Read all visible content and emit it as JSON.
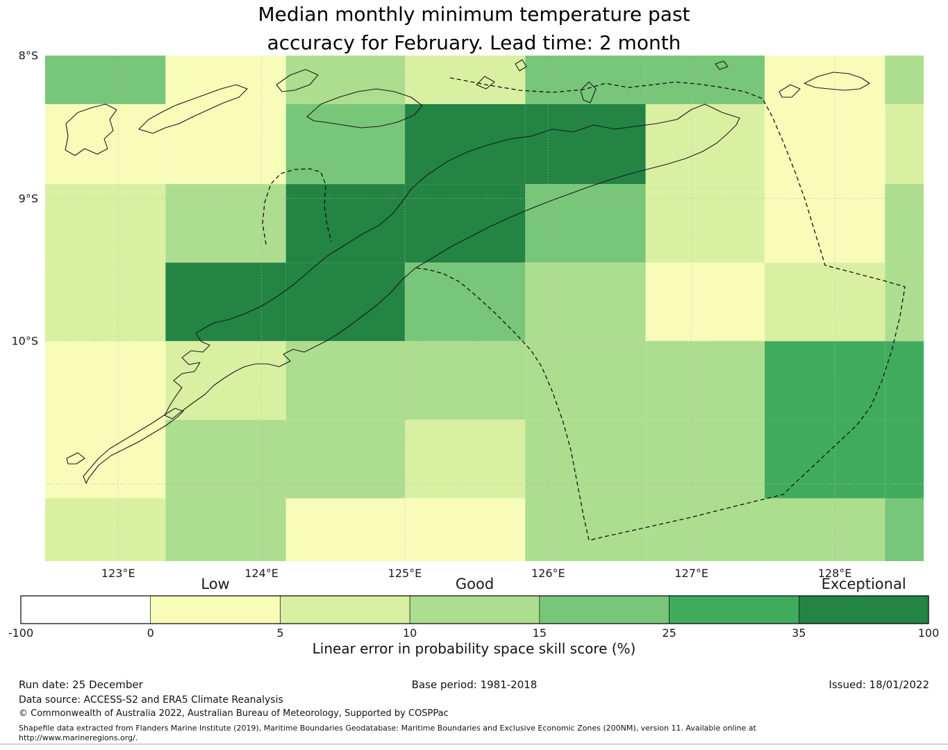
{
  "title": {
    "line1": "Median monthly minimum temperature past",
    "line2": "accuracy for February. Lead time: 2 month"
  },
  "chart_data": {
    "type": "heatmap",
    "title": "Median monthly minimum temperature past accuracy for February. Lead time: 2 month",
    "xlim": [
      122.49,
      128.62
    ],
    "ylim": [
      8.0,
      11.54
    ],
    "x_ticks": [
      {
        "value": 123,
        "label": "123°E"
      },
      {
        "value": 124,
        "label": "124°E"
      },
      {
        "value": 125,
        "label": "125°E"
      },
      {
        "value": 126,
        "label": "126°E"
      },
      {
        "value": 127,
        "label": "127°E"
      },
      {
        "value": 128,
        "label": "128°E"
      }
    ],
    "y_ticks": [
      {
        "value": 8,
        "label": "8°S"
      },
      {
        "value": 9,
        "label": "9°S"
      },
      {
        "value": 10,
        "label": "10°S"
      }
    ],
    "grid_lats": [
      9,
      10,
      11
    ],
    "grid": {
      "lon_edges": [
        122.49,
        123.33,
        124.17,
        125.0,
        125.84,
        126.68,
        127.51,
        128.35,
        128.62
      ],
      "lat_edges": [
        8.0,
        8.34,
        8.9,
        9.45,
        10.0,
        10.55,
        11.1,
        11.54
      ],
      "bucket_ranges": [
        "-100 to 0",
        "0 to 5",
        "5 to 10",
        "10 to 15",
        "15 to 25",
        "25 to 35",
        "35 to 100"
      ],
      "cells": [
        [
          4,
          1,
          3,
          2,
          4,
          4,
          1,
          3
        ],
        [
          1,
          1,
          4,
          6,
          6,
          2,
          1,
          2
        ],
        [
          2,
          3,
          6,
          6,
          4,
          2,
          1,
          3
        ],
        [
          2,
          6,
          6,
          4,
          3,
          1,
          2,
          3
        ],
        [
          1,
          2,
          3,
          3,
          3,
          3,
          5,
          5
        ],
        [
          1,
          3,
          3,
          2,
          3,
          3,
          5,
          5
        ],
        [
          2,
          3,
          1,
          1,
          3,
          3,
          3,
          4
        ]
      ]
    },
    "colorbar": {
      "boundaries": [
        -100,
        0,
        5,
        10,
        15,
        25,
        35,
        100
      ],
      "tick_labels": [
        "-100",
        "0",
        "5",
        "10",
        "15",
        "25",
        "35",
        "100"
      ],
      "colors": [
        "#ffffff",
        "#f7fcb9",
        "#d9f0a3",
        "#addd8e",
        "#78c679",
        "#41ab5d",
        "#238443"
      ],
      "categories": [
        {
          "label": "Low",
          "segment": 1
        },
        {
          "label": "Good",
          "segment": 3
        },
        {
          "label": "Exceptional",
          "segment": 6
        }
      ],
      "axis_label": "Linear error in probability space skill score (%)"
    }
  },
  "footer": {
    "run_date": "Run date: 25 December",
    "base_period": "Base period: 1981-2018",
    "issued": "Issued: 18/01/2022",
    "data_source": "Data source: ACCESS-S2 and ERA5 Climate Reanalysis",
    "copyright": "© Commonwealth of Australia 2022, Australian Bureau of Meteorology, Supported by COSPPac",
    "shapefile_line1": "Shapefile data extracted from Flanders Marine Institute (2019), Maritime Boundaries Geodatabase: Maritime Boundaries and Exclusive Economic Zones (200NM), version 11. Available online at",
    "shapefile_line2": "http://www.marineregions.org/."
  }
}
